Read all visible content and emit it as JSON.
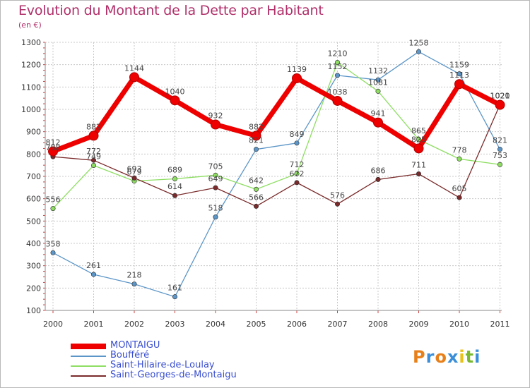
{
  "title": "Evolution du Montant de la Dette par Habitant",
  "subtitle": "(en €)",
  "logo": {
    "text": "Proxiti",
    "letters": [
      {
        "ch": "P",
        "color": "#e8801a"
      },
      {
        "ch": "r",
        "color": "#3b8fd8"
      },
      {
        "ch": "o",
        "color": "#e8801a"
      },
      {
        "ch": "x",
        "color": "#3b8fd8"
      },
      {
        "ch": "i",
        "color": "#e8c21a"
      },
      {
        "ch": "t",
        "color": "#7ab832"
      },
      {
        "ch": "i",
        "color": "#3b8fd8"
      }
    ]
  },
  "chart_data": {
    "type": "line",
    "x": [
      "2000",
      "2001",
      "2002",
      "2003",
      "2004",
      "2005",
      "2006",
      "2007",
      "2008",
      "2009",
      "2010",
      "2011"
    ],
    "ylim": [
      100,
      1300
    ],
    "yticks": [
      100,
      200,
      300,
      400,
      500,
      600,
      700,
      800,
      900,
      1000,
      1100,
      1200,
      1300
    ],
    "grid": true,
    "legend": "bottom-left",
    "series": [
      {
        "name": "MONTAIGU",
        "color": "#ee0000",
        "values": [
          812,
          882,
          1144,
          1040,
          932,
          882,
          1139,
          1038,
          941,
          825,
          1113,
          1020
        ],
        "labels": [
          "812",
          "882",
          "1144",
          "1040",
          "932",
          "882",
          "1139",
          "1038",
          "941",
          "825",
          "1113",
          "1020"
        ]
      },
      {
        "name": "Boufféré",
        "color": "#5c96c8",
        "values": [
          358,
          261,
          218,
          161,
          518,
          821,
          849,
          1152,
          1132,
          1258,
          1159,
          821
        ],
        "labels": [
          "358",
          "261",
          "218",
          "161",
          "518",
          "821",
          "849",
          "1152",
          "1132",
          "1258",
          "1159",
          "821"
        ]
      },
      {
        "name": "Saint-Hilaire-de-Loulay",
        "color": "#8ede62",
        "values": [
          556,
          749,
          679,
          689,
          705,
          642,
          712,
          1210,
          1081,
          865,
          778,
          753
        ],
        "labels": [
          "556",
          "749",
          "679",
          "689",
          "705",
          "642",
          "712",
          "1210",
          "1081",
          "865",
          "778",
          "753"
        ]
      },
      {
        "name": "Saint-Georges-de-Montaigu",
        "color": "#7a2a2a",
        "values": [
          788,
          772,
          693,
          614,
          649,
          566,
          672,
          576,
          686,
          711,
          605,
          1021
        ],
        "labels": [
          "788",
          "772",
          "693",
          "614",
          "649",
          "566",
          "672",
          "576",
          "686",
          "711",
          "605",
          "1021"
        ]
      }
    ]
  }
}
